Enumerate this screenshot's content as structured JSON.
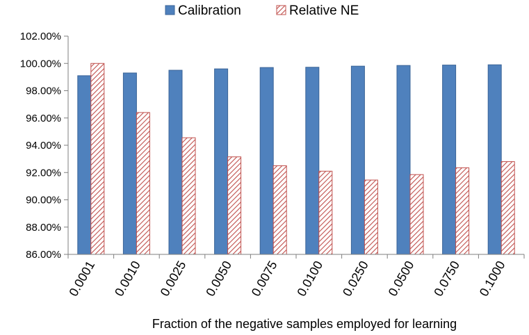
{
  "chart_data": {
    "type": "bar",
    "title": "",
    "xlabel": "Fraction of the negative samples employed for learning",
    "ylabel": "",
    "categories": [
      "0.0001",
      "0.0010",
      "0.0025",
      "0.0050",
      "0.0075",
      "0.0100",
      "0.0250",
      "0.0500",
      "0.0750",
      "0.1000"
    ],
    "series": [
      {
        "name": "Calibration",
        "color": "#4f81bd",
        "pattern": "solid",
        "values": [
          99.1,
          99.3,
          99.5,
          99.6,
          99.7,
          99.72,
          99.8,
          99.85,
          99.88,
          99.9
        ]
      },
      {
        "name": "Relative NE",
        "color": "#c0504d",
        "pattern": "diagonal-hatch",
        "values": [
          100.0,
          96.4,
          94.55,
          93.15,
          92.5,
          92.1,
          91.45,
          91.85,
          92.35,
          92.8
        ]
      }
    ],
    "ylim": [
      86,
      102
    ],
    "yticks": [
      "86.00%",
      "88.00%",
      "90.00%",
      "92.00%",
      "94.00%",
      "96.00%",
      "98.00%",
      "100.00%",
      "102.00%"
    ],
    "ytick_values": [
      86,
      88,
      90,
      92,
      94,
      96,
      98,
      100,
      102
    ],
    "legend_position": "top-center",
    "grid": false
  }
}
